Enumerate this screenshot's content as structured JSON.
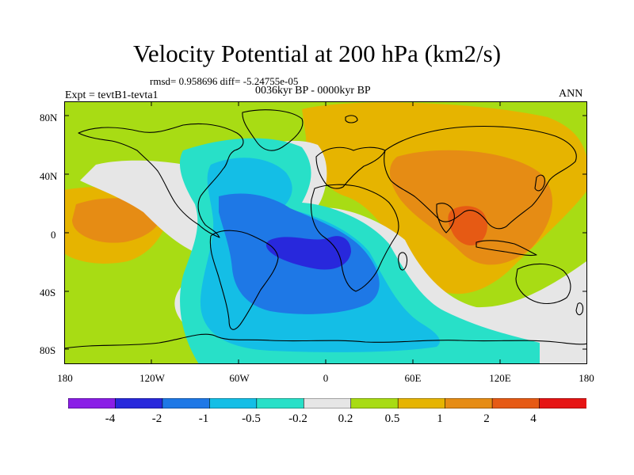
{
  "title": "Velocity Potential at 200 hPa (km2/s)",
  "stats": "rmsd= 0.958696 diff= -5.24755e-05",
  "experiment": "Expt = tevtB1-tevta1",
  "period": "0036kyr BP - 0000kyr BP",
  "season": "ANN",
  "lat_labels": [
    "80N",
    "40N",
    "0",
    "40S",
    "80S"
  ],
  "lon_labels": [
    "180",
    "120W",
    "60W",
    "0",
    "60E",
    "120E",
    "180"
  ],
  "colorbar": {
    "labels": [
      "-4",
      "-2",
      "-1",
      "-0.5",
      "-0.2",
      "0.2",
      "0.5",
      "1",
      "2",
      "4"
    ],
    "colors": [
      "#8a1ee6",
      "#2828dc",
      "#1e78e6",
      "#14bee6",
      "#28e0c8",
      "#e6e6e6",
      "#a8dc14",
      "#e6b400",
      "#e68c14",
      "#e65a14",
      "#e61414"
    ]
  },
  "map_colors": {
    "c_neg4": "#2828dc",
    "c_neg2": "#1e78e6",
    "c_neg1": "#14bee6",
    "c_neg05": "#28e0c8",
    "c_zero": "#e6e6e6",
    "c_pos02": "#a8dc14",
    "c_pos05": "#e6b400",
    "c_pos1": "#e68c14",
    "c_pos2": "#e65a14",
    "coast": "#000000"
  }
}
